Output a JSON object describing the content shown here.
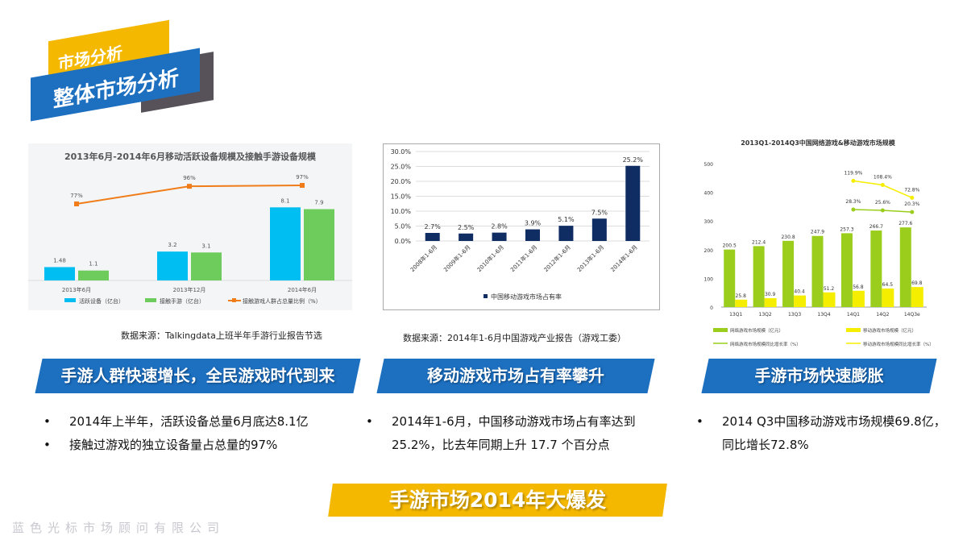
{
  "header": {
    "section": "市场分析",
    "subsection": "整体市场分析"
  },
  "colors": {
    "blue": "#1d6fbf",
    "yellow": "#f5b800",
    "cyan": "#00bdf2",
    "green": "#6dcc5c",
    "orange": "#f07d1a",
    "navy": "#0f2d63",
    "lime": "#9acd1c",
    "limeYellow": "#f6ee00"
  },
  "panels": [
    {
      "source": "数据来源：Talkingdata上班半年手游行业报告节选",
      "banner": "手游人群快速增长，全民游戏时代到来",
      "bullets": [
        "2014年上半年，活跃设备总量6月底达8.1亿",
        "接触过游戏的独立设备量占总量的97%"
      ]
    },
    {
      "source": "数据来源：2014年1-6月中国游戏产业报告（游戏工委）",
      "banner": "移动游戏市场占有率攀升",
      "bullets": [
        "2014年1-6月，中国移动游戏市场占有率达到 25.2%，比去年同期上升 17.7 个百分点"
      ]
    },
    {
      "source": "",
      "banner": "手游市场快速膨胀",
      "bullets": [
        "2014  Q3中国移动游戏市场规模69.8亿，同比增长72.8%"
      ]
    }
  ],
  "bottom": {
    "pre": "手游市场201",
    "faint": "4",
    "post": "年大爆发"
  },
  "footer": "蓝色光标市场顾问有限公司",
  "chart_data": [
    {
      "type": "bar",
      "title": "2013年6月-2014年6月移动活跃设备规模及接触手游设备规模",
      "categories": [
        "2013年6月",
        "2013年12月",
        "2014年6月"
      ],
      "series": [
        {
          "name": "活跃设备（亿台）",
          "type": "bar",
          "values": [
            1.48,
            3.2,
            8.1
          ],
          "labels": [
            "1.48",
            "3.2",
            "8.1"
          ]
        },
        {
          "name": "接触手游（亿台）",
          "type": "bar",
          "values": [
            1.1,
            3.1,
            7.9
          ],
          "labels": [
            "1.1",
            "3.1",
            "7.9"
          ]
        },
        {
          "name": "接触游戏人群占总量比例（%）",
          "type": "line",
          "values": [
            77,
            96,
            97
          ],
          "labels": [
            "77%",
            "96%",
            "97%"
          ]
        }
      ],
      "legend": "bottom",
      "grid": false
    },
    {
      "type": "bar",
      "categories": [
        "2008年1-6月",
        "2009年1-6月",
        "2010年1-6月",
        "2011年1-6月",
        "2012年1-6月",
        "2013年1-6月",
        "2014年1-6月"
      ],
      "series": [
        {
          "name": "中国移动游戏市场占有率",
          "values": [
            2.7,
            2.5,
            2.8,
            3.9,
            5.1,
            7.5,
            25.2
          ],
          "labels": [
            "2.7%",
            "2.5%",
            "2.8%",
            "3.9%",
            "5.1%",
            "7.5%",
            "25.2%"
          ]
        }
      ],
      "ylim": [
        0,
        30
      ],
      "yticks": [
        "0.0%",
        "5.0%",
        "10.0%",
        "15.0%",
        "20.0%",
        "25.0%",
        "30.0%"
      ],
      "grid": true,
      "legend": "bottom"
    },
    {
      "type": "bar",
      "title": "2013Q1-2014Q3中国网络游戏&移动游戏市场规模",
      "categories": [
        "13Q1",
        "13Q2",
        "13Q3",
        "13Q4",
        "14Q1",
        "14Q2",
        "14Q3e"
      ],
      "ylim": [
        0,
        500
      ],
      "yticks": [
        "0",
        "100",
        "200",
        "300",
        "400",
        "500"
      ],
      "series": [
        {
          "name": "网络游戏市场规模（亿元）",
          "type": "bar",
          "values": [
            200.5,
            212.4,
            230.8,
            247.9,
            257.3,
            266.7,
            277.6
          ]
        },
        {
          "name": "移动游戏市场规模（亿元）",
          "type": "bar",
          "values": [
            25.8,
            30.9,
            40.4,
            51.2,
            56.8,
            64.5,
            69.8
          ]
        },
        {
          "name": "网络游戏市场规模同比增长率（%）",
          "type": "line",
          "values": [
            null,
            null,
            null,
            null,
            28.3,
            25.6,
            20.3
          ],
          "labels": [
            "28.3%",
            "25.6%",
            "20.3%"
          ]
        },
        {
          "name": "移动游戏市场规模同比增长率（%）",
          "type": "line",
          "values": [
            null,
            null,
            null,
            null,
            119.9,
            108.4,
            72.8
          ],
          "labels": [
            "119.9%",
            "108.4%",
            "72.8%"
          ]
        }
      ],
      "legend": "bottom",
      "grid": false
    }
  ]
}
